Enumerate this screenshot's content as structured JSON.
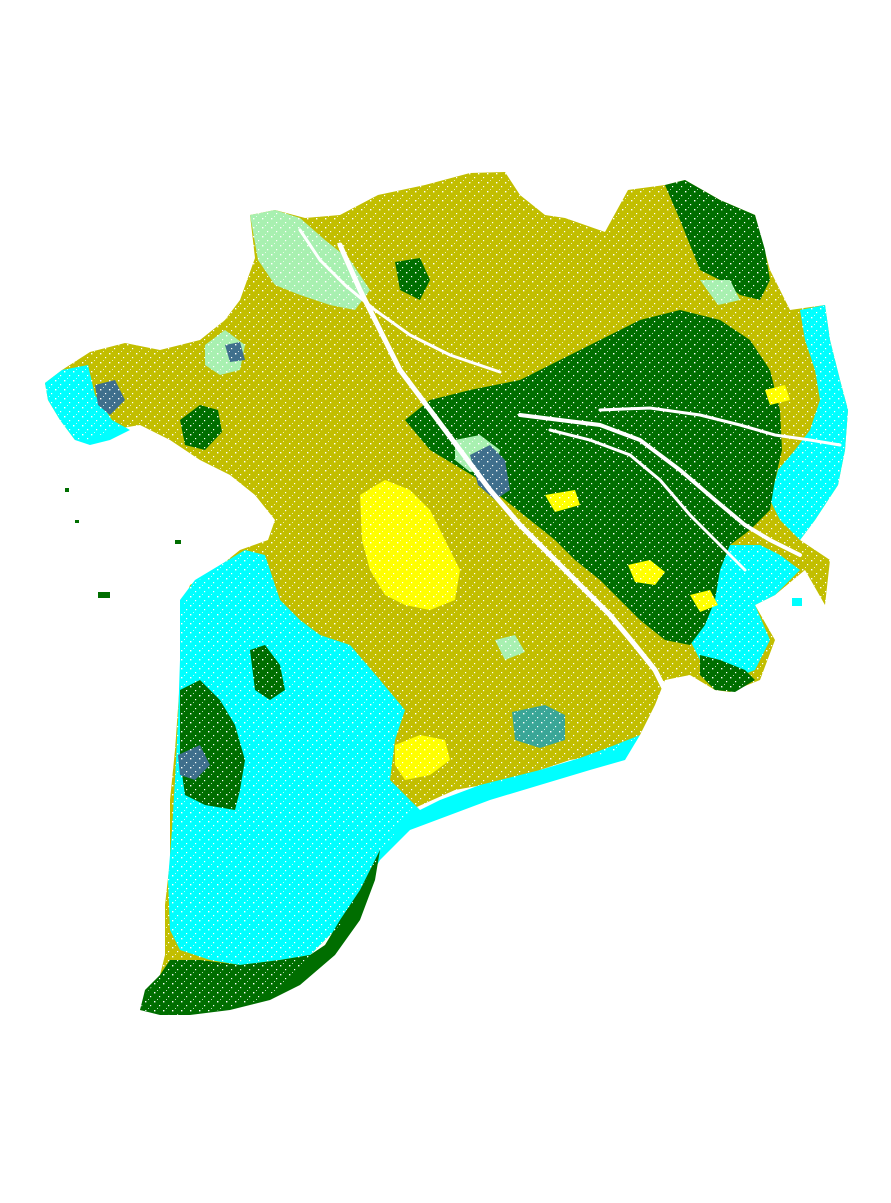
{
  "map": {
    "background": "#ffffff",
    "classes": [
      {
        "name": "olive",
        "color": "#c2be00"
      },
      {
        "name": "dark-green",
        "color": "#006e00"
      },
      {
        "name": "cyan",
        "color": "#00ffff"
      },
      {
        "name": "yellow",
        "color": "#ffff00"
      },
      {
        "name": "light-green",
        "color": "#a8f0b0"
      },
      {
        "name": "slate-blue",
        "color": "#3f6f8c"
      },
      {
        "name": "teal",
        "color": "#3aa697"
      }
    ],
    "waterways_color": "#ffffff"
  }
}
